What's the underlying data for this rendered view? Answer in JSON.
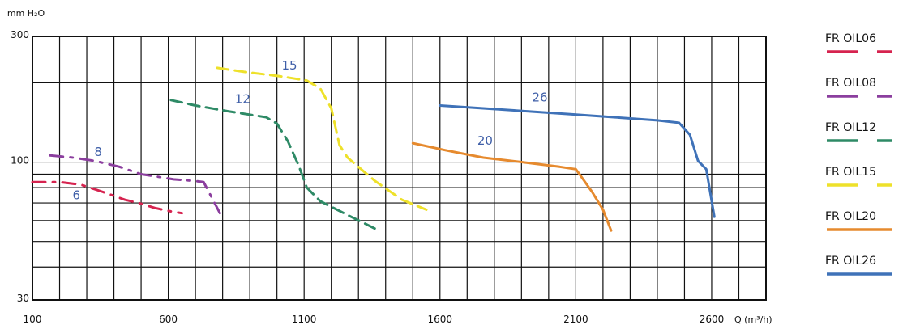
{
  "chart_data": {
    "type": "line",
    "y_axis_title": "mm H₂O",
    "x_axis_title": "Q (m³/h)",
    "x_ticks": [
      100,
      600,
      1100,
      1600,
      2100,
      2600
    ],
    "y_ticks": [
      30,
      100,
      300
    ],
    "xlim": [
      100,
      2800
    ],
    "ylim": [
      30,
      300
    ],
    "y_scale": "log",
    "grid": true,
    "legend": "right",
    "series": [
      {
        "name": "FR OIL06",
        "label": "6",
        "color": "#d6234f",
        "dash": "16 9 3 9",
        "x": [
          100,
          200,
          280,
          360,
          440,
          490,
          550,
          610,
          650
        ],
        "y": [
          84,
          84,
          82,
          77,
          72,
          70,
          67,
          65,
          64
        ]
      },
      {
        "name": "FR OIL08",
        "label": "8",
        "color": "#8b3e9e",
        "dash": "16 9 3 9",
        "x": [
          165,
          250,
          330,
          420,
          500,
          560,
          620,
          690,
          730,
          790
        ],
        "y": [
          106,
          104,
          101,
          96,
          90,
          88,
          86,
          85,
          84,
          64
        ]
      },
      {
        "name": "FR OIL12",
        "label": "12",
        "color": "#2e8a66",
        "dash": "14 8",
        "x": [
          610,
          700,
          820,
          960,
          1000,
          1040,
          1080,
          1110,
          1160,
          1260,
          1360
        ],
        "y": [
          172,
          164,
          156,
          148,
          140,
          120,
          97,
          80,
          71,
          63,
          56
        ]
      },
      {
        "name": "FR OIL15",
        "label": "15",
        "color": "#eee12a",
        "dash": "14 8",
        "x": [
          780,
          880,
          1010,
          1110,
          1160,
          1200,
          1230,
          1260,
          1360,
          1460,
          1550
        ],
        "y": [
          228,
          220,
          212,
          204,
          190,
          160,
          116,
          104,
          85,
          72,
          66
        ]
      },
      {
        "name": "FR OIL20",
        "label": "20",
        "color": "#e68a2e",
        "dash": "",
        "x": [
          1500,
          1620,
          1760,
          1900,
          2040,
          2100,
          2120,
          2160,
          2200,
          2230
        ],
        "y": [
          118,
          111,
          104,
          100,
          96,
          94,
          88,
          77,
          66,
          55
        ]
      },
      {
        "name": "FR OIL26",
        "label": "26",
        "color": "#3f72b8",
        "dash": "",
        "x": [
          1600,
          1760,
          1920,
          2080,
          2240,
          2400,
          2480,
          2520,
          2550,
          2580,
          2610
        ],
        "y": [
          164,
          160,
          156,
          152,
          148,
          144,
          141,
          127,
          101,
          94,
          62
        ]
      }
    ]
  }
}
